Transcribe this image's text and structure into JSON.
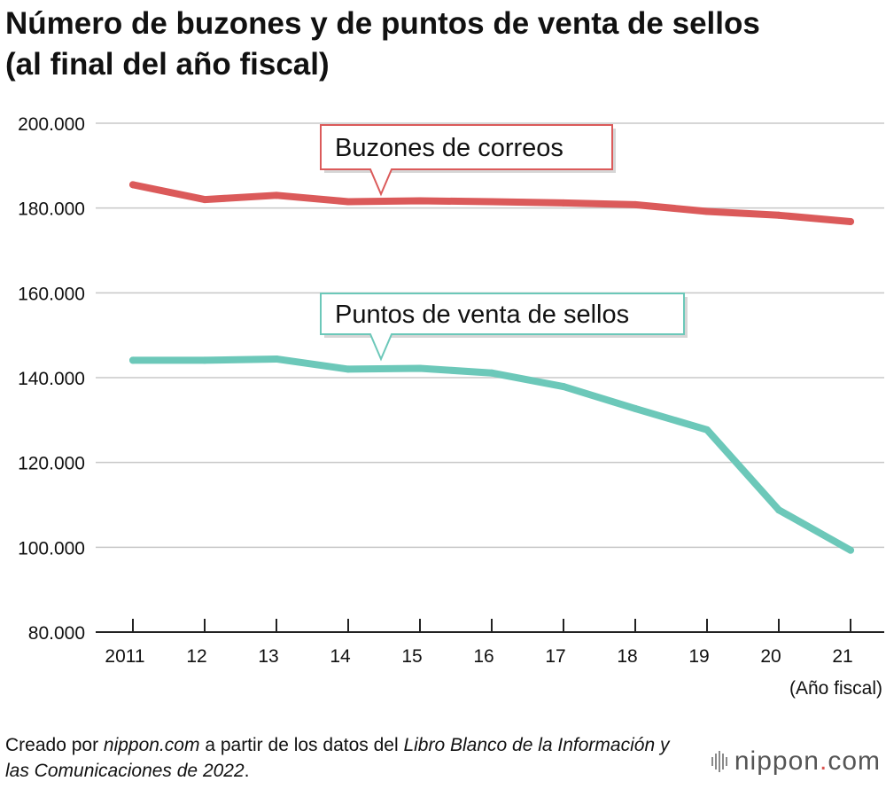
{
  "title_line1": "Número de buzones y de puntos de venta de sellos",
  "title_line2": "(al final del año fiscal)",
  "chart_data": {
    "type": "line",
    "categories": [
      "2011",
      "12",
      "13",
      "14",
      "15",
      "16",
      "17",
      "18",
      "19",
      "20",
      "21"
    ],
    "x_unit_label": "(Año fiscal)",
    "ylim": [
      80000,
      200000
    ],
    "yticks": [
      80000,
      100000,
      120000,
      140000,
      160000,
      180000,
      200000
    ],
    "ytick_labels": [
      "80.000",
      "100.000",
      "120.000",
      "140.000",
      "160.000",
      "180.000",
      "200.000"
    ],
    "grid": true,
    "series": [
      {
        "name": "Buzones de correos",
        "color": "#db5a5a",
        "values": [
          185500,
          182000,
          183000,
          181500,
          181700,
          181500,
          181200,
          180800,
          179200,
          178300,
          176800
        ]
      },
      {
        "name": "Puntos de venta de sellos",
        "color": "#6cc8b9",
        "values": [
          144100,
          144100,
          144400,
          142000,
          142200,
          141100,
          137900,
          132700,
          127700,
          108800,
          99300
        ]
      }
    ]
  },
  "source": {
    "prefix": "Creado por ",
    "site": "nippon.com",
    "middle": " a partir de los datos del ",
    "book": "Libro Blanco de la Información y las Comunicaciones de 2022",
    "suffix": "."
  },
  "logo": {
    "name": "nippon",
    "dot": ".",
    "tld": "com"
  }
}
